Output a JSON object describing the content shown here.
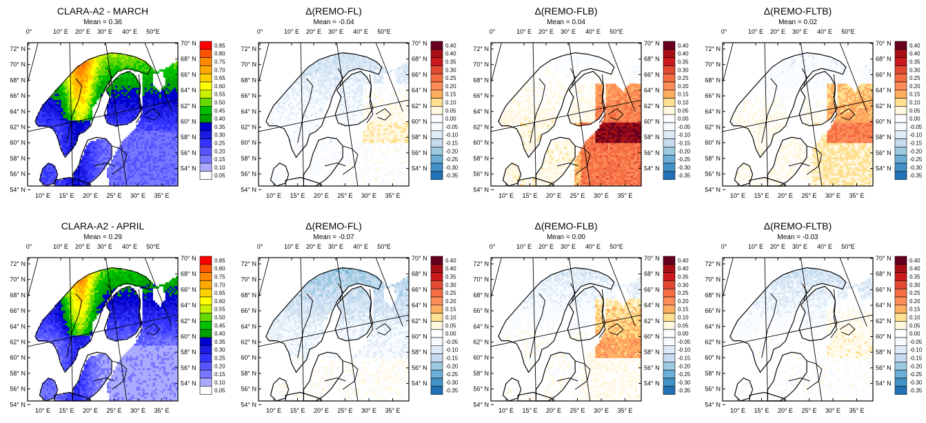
{
  "figure": {
    "rows": [
      {
        "panels": [
          {
            "title": "CLARA-A2 - MARCH",
            "mean": "Mean = 0.36",
            "kind": "albedo",
            "pattern": "march_albedo"
          },
          {
            "title": "Δ(REMO-FL)",
            "mean": "Mean = -0.04",
            "kind": "diff",
            "pattern": "fl_march"
          },
          {
            "title": "Δ(REMO-FLB)",
            "mean": "Mean = 0.04",
            "kind": "diff",
            "pattern": "flb_march"
          },
          {
            "title": "Δ(REMO-FLTB)",
            "mean": "Mean = 0.02",
            "kind": "diff",
            "pattern": "fltb_march"
          }
        ]
      },
      {
        "panels": [
          {
            "title": "CLARA-A2 - APRIL",
            "mean": "Mean = 0.29",
            "kind": "albedo",
            "pattern": "april_albedo"
          },
          {
            "title": "Δ(REMO-FL)",
            "mean": "Mean = -0.07",
            "kind": "diff",
            "pattern": "fl_april"
          },
          {
            "title": "Δ(REMO-FLB)",
            "mean": "Mean = 0.00",
            "kind": "diff",
            "pattern": "flb_april"
          },
          {
            "title": "Δ(REMO-FLTB)",
            "mean": "Mean = -0.03",
            "kind": "diff",
            "pattern": "fltb_april"
          }
        ]
      }
    ],
    "axes": {
      "top_lon": [
        "0°",
        "10° E",
        "20° E",
        "30° E",
        "40° E",
        "50°E"
      ],
      "bottom_lon": [
        "10° E",
        "15° E",
        "20° E",
        "25° E",
        "30° E",
        "35° E"
      ],
      "left_lat": [
        "72° N",
        "70° N",
        "68° N",
        "66° N",
        "64° N",
        "62° N",
        "60° N",
        "58° N",
        "56° N",
        "54° N"
      ],
      "right_lat": [
        "70° N",
        "68° N",
        "66° N",
        "64° N",
        "62° N",
        "60° N",
        "58° N",
        "56° N",
        "54° N"
      ]
    },
    "colorbars": {
      "albedo": {
        "labels": [
          "0.85",
          "0.80",
          "0.75",
          "0.70",
          "0.65",
          "0.60",
          "0.55",
          "0.50",
          "0.45",
          "0.40",
          "0.35",
          "0.30",
          "0.25",
          "0.20",
          "0.15",
          "0.10",
          "0.05"
        ],
        "colors": [
          "#ff0000",
          "#ff5500",
          "#ff8800",
          "#ffaa00",
          "#ffd000",
          "#ffff00",
          "#c8f000",
          "#66d900",
          "#00c000",
          "#00a000",
          "#0000cc",
          "#1a1ae0",
          "#3333ff",
          "#5555ff",
          "#7777ff",
          "#aaaaff",
          "#ffffff"
        ]
      },
      "diff": {
        "labels": [
          "0.40",
          "0.40",
          "0.35",
          "0.30",
          "0.25",
          "0.20",
          "0.15",
          "0.10",
          "0.05",
          "0.00",
          "-0.05",
          "-0.10",
          "-0.15",
          "-0.20",
          "-0.25",
          "-0.30",
          "-0.35"
        ],
        "colors": [
          "#67001f",
          "#a50f15",
          "#cb181d",
          "#e34a33",
          "#f46d43",
          "#fc8d59",
          "#fdae61",
          "#fee090",
          "#fff7e0",
          "#ffffff",
          "#f7fbff",
          "#deebf7",
          "#c6dbef",
          "#9ecae1",
          "#6baed6",
          "#4292c6",
          "#2171b5"
        ]
      }
    },
    "map_colors": {
      "ocean": "#ffffff",
      "border": "#000000"
    }
  }
}
